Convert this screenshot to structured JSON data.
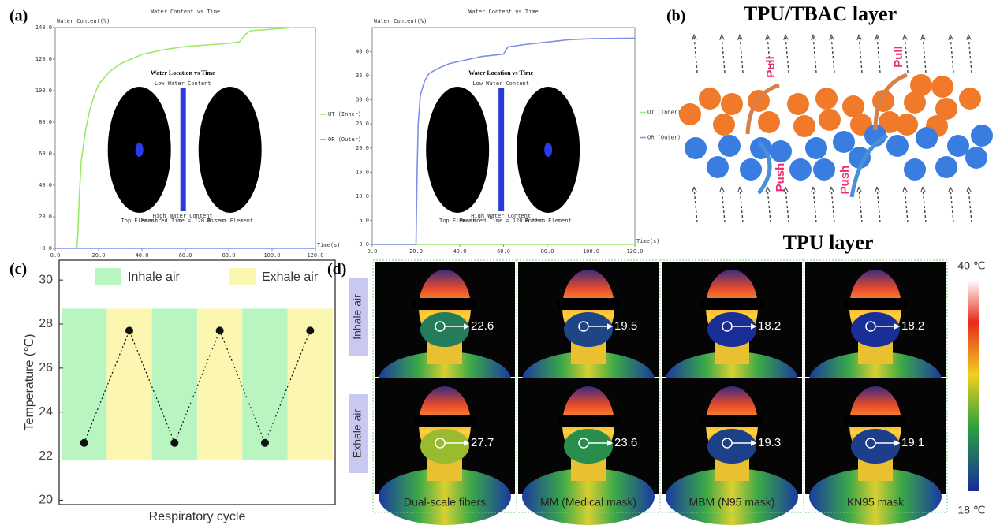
{
  "panel_labels": [
    "(a)",
    "(b)",
    "(c)",
    "(d)"
  ],
  "chart_data": [
    {
      "type": "line",
      "title": "Water Content vs Time",
      "ylabel": "Water Content(%)",
      "xlabel": "Time(s)",
      "xlim": [
        0,
        120
      ],
      "ylim": [
        0,
        140
      ],
      "xticks": [
        {
          "value": 0,
          "label": "0.0"
        },
        {
          "value": 20,
          "label": "20.0"
        },
        {
          "value": 40,
          "label": "40.0"
        },
        {
          "value": 60,
          "label": "60.0"
        },
        {
          "value": 80,
          "label": "80.0"
        },
        {
          "value": 100,
          "label": "100.0"
        },
        {
          "value": 120,
          "label": "120.0"
        }
      ],
      "yticks": [
        {
          "value": 0,
          "label": "0.0"
        },
        {
          "value": 20,
          "label": "20.0"
        },
        {
          "value": 40,
          "label": "40.0"
        },
        {
          "value": 60,
          "label": "60.0"
        },
        {
          "value": 80,
          "label": "80.0"
        },
        {
          "value": 100,
          "label": "100.0"
        },
        {
          "value": 120,
          "label": "120.0"
        },
        {
          "value": 140,
          "label": "140.0"
        }
      ],
      "series": [
        {
          "name": "UT (Inner)",
          "color": "#9be86a",
          "x": [
            10,
            10.5,
            11,
            12,
            14,
            16,
            18,
            20,
            25,
            30,
            40,
            50,
            60,
            70,
            80,
            85,
            88,
            90,
            100,
            110,
            120
          ],
          "values": [
            0,
            10,
            30,
            55,
            75,
            88,
            97,
            104,
            112,
            117,
            123,
            126,
            128,
            129,
            130,
            131,
            136,
            138,
            139,
            140,
            140
          ]
        },
        {
          "name": "OR (Outer)",
          "color": "#7f8fe8",
          "x": [
            0,
            120
          ],
          "values": [
            0,
            0
          ]
        }
      ],
      "inset": {
        "title": "Water Location vs Time",
        "labels": [
          "Top Element",
          "Low Water Content",
          "High Water Content",
          "Measured Time = 120.0 sec",
          "Bottom Element"
        ],
        "spot": "top"
      }
    },
    {
      "type": "line",
      "title": "Water Content vs Time",
      "ylabel": "Water Content(%)",
      "xlabel": "Time(s)",
      "xlim": [
        0,
        120
      ],
      "ylim": [
        0,
        45
      ],
      "xticks": [
        {
          "value": 0,
          "label": "0.0"
        },
        {
          "value": 20,
          "label": "20.0"
        },
        {
          "value": 40,
          "label": "40.0"
        },
        {
          "value": 60,
          "label": "60.0"
        },
        {
          "value": 80,
          "label": "80.0"
        },
        {
          "value": 100,
          "label": "100.0"
        },
        {
          "value": 120,
          "label": "120.0"
        }
      ],
      "yticks": [
        {
          "value": 0,
          "label": "0.0"
        },
        {
          "value": 5,
          "label": "5.0"
        },
        {
          "value": 10,
          "label": "10.0"
        },
        {
          "value": 15,
          "label": "15.0"
        },
        {
          "value": 20,
          "label": "20.0"
        },
        {
          "value": 25,
          "label": "25.0"
        },
        {
          "value": 30,
          "label": "30.0"
        },
        {
          "value": 35,
          "label": "35.0"
        },
        {
          "value": 40,
          "label": "40.0"
        }
      ],
      "series": [
        {
          "name": "UT (Inner)",
          "color": "#9be86a",
          "x": [
            0,
            120
          ],
          "values": [
            0,
            0
          ]
        },
        {
          "name": "OR (Outer)",
          "color": "#7f8fe8",
          "x": [
            0,
            20,
            20.5,
            21,
            22,
            24,
            26,
            30,
            35,
            40,
            50,
            60,
            62,
            70,
            80,
            90,
            100,
            120
          ],
          "values": [
            0,
            0,
            15,
            25,
            31,
            34,
            35.5,
            36.5,
            37.5,
            38,
            39,
            39.5,
            41,
            41.5,
            42,
            42.5,
            42.7,
            42.8
          ]
        }
      ],
      "inset": {
        "title": "Water Location vs Time",
        "labels": [
          "Top Element",
          "Low Water Content",
          "High Water Content",
          "Measured Time = 120.0 sec",
          "Bottom Element"
        ],
        "spot": "bottom"
      }
    },
    {
      "type": "line",
      "ylabel": "Temperature (℃)",
      "xlabel": "Respiratory cycle",
      "ylim": [
        19.8,
        30.9
      ],
      "yticks": [
        20,
        22,
        24,
        26,
        28,
        30
      ],
      "series": [
        {
          "color": "#111111",
          "values": [
            22.6,
            27.7,
            22.6,
            27.7,
            22.6,
            27.7
          ]
        }
      ],
      "bands": [
        {
          "name": "Inhale air",
          "color": "#b9f5c0"
        },
        {
          "name": "Exhale air",
          "color": "#fbf7b0"
        }
      ],
      "band_range": [
        21.8,
        28.7
      ]
    }
  ],
  "diagram": {
    "top_label": "TPU/TBAC layer",
    "bottom_label": "TPU layer",
    "pull": [
      "Pull",
      "Pull"
    ],
    "push": [
      "Push",
      "Push"
    ]
  },
  "thermal": {
    "columns": [
      "Dual-scale fibers",
      "MM (Medical mask)",
      "MBM (N95 mask)",
      "KN95 mask"
    ],
    "rows": [
      {
        "label": "Inhale air",
        "values": [
          22.6,
          19.5,
          18.2,
          18.2
        ]
      },
      {
        "label": "Exhale air",
        "values": [
          27.7,
          23.6,
          19.3,
          19.1
        ]
      }
    ],
    "colorbar": [
      {
        "value": 40,
        "label": "40 ℃"
      },
      {
        "value": 18,
        "label": "18 ℃"
      }
    ]
  }
}
